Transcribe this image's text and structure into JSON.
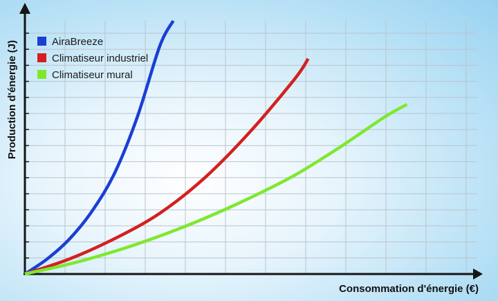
{
  "chart_data": {
    "type": "line",
    "title": "",
    "xlabel": "Consommation d'énergie (€)",
    "ylabel": "Production d'énergie (J)",
    "xlim": [
      0,
      100
    ],
    "ylim": [
      0,
      100
    ],
    "grid": true,
    "ticks_labeled": false,
    "legend_position": "top-left",
    "series": [
      {
        "name": "AiraBreeze",
        "color": "#1a3fd4",
        "x": [
          0,
          5,
          10,
          15,
          20,
          25,
          30,
          33
        ],
        "y": [
          0,
          6,
          14,
          25,
          40,
          62,
          90,
          100
        ]
      },
      {
        "name": "Climatiseur industriel",
        "color": "#d42020",
        "x": [
          0,
          10,
          20,
          30,
          40,
          50,
          60,
          63
        ],
        "y": [
          0,
          6,
          14,
          24,
          38,
          56,
          77,
          85
        ]
      },
      {
        "name": "Climatiseur mural",
        "color": "#7ee82f",
        "x": [
          0,
          10,
          20,
          30,
          40,
          50,
          60,
          70,
          80,
          85
        ],
        "y": [
          0,
          4,
          9,
          15,
          22,
          30,
          39,
          50,
          62,
          67
        ]
      }
    ]
  }
}
